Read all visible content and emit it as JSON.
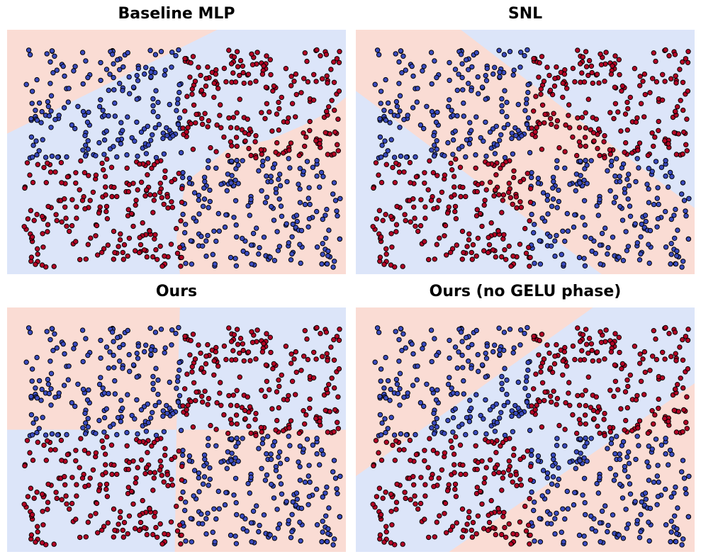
{
  "colors": {
    "region_red": "#fadcd4",
    "region_blue": "#dce5f9",
    "point_red": "#b40426",
    "point_blue": "#3b4cc0",
    "point_edge": "#000000"
  },
  "chart_data": [
    {
      "type": "scatter",
      "title": "Baseline MLP",
      "xlabel": "",
      "ylabel": "",
      "xlim": [
        -1,
        1
      ],
      "ylim": [
        -1,
        1
      ],
      "axes_visible": false,
      "classes": [
        "red",
        "blue"
      ],
      "points_per_class_approx": 400,
      "seed": 11,
      "true_boundary": "xor",
      "decision_regions": [
        {
          "class": "red",
          "polygon": [
            [
              -1,
              0.15
            ],
            [
              -1,
              1
            ],
            [
              0.24,
              1
            ]
          ]
        },
        {
          "class": "red",
          "polygon": [
            [
              0.02,
              -1
            ],
            [
              1,
              -1
            ],
            [
              1,
              0.45
            ],
            [
              0.9,
              0.33
            ],
            [
              0.75,
              0.22
            ],
            [
              0.55,
              0.1
            ],
            [
              0.3,
              0.02
            ],
            [
              0.05,
              -0.25
            ],
            [
              0.0,
              -0.7
            ]
          ]
        }
      ]
    },
    {
      "type": "scatter",
      "title": "SNL",
      "xlabel": "",
      "ylabel": "",
      "xlim": [
        -1,
        1
      ],
      "ylim": [
        -1,
        1
      ],
      "axes_visible": false,
      "classes": [
        "red",
        "blue"
      ],
      "points_per_class_approx": 400,
      "seed": 11,
      "true_boundary": "xor",
      "decision_regions": [
        {
          "class": "red",
          "polygon": [
            [
              -1,
              0.5
            ],
            [
              -1,
              1
            ],
            [
              -0.38,
              1
            ],
            [
              1,
              -0.46
            ],
            [
              1,
              -1
            ],
            [
              0.45,
              -1
            ]
          ]
        }
      ]
    },
    {
      "type": "scatter",
      "title": "Ours",
      "xlabel": "",
      "ylabel": "",
      "xlim": [
        -1,
        1
      ],
      "ylim": [
        -1,
        1
      ],
      "axes_visible": false,
      "classes": [
        "red",
        "blue"
      ],
      "points_per_class_approx": 400,
      "seed": 11,
      "true_boundary": "xor",
      "decision_regions": [
        {
          "class": "red",
          "polygon": [
            [
              -1,
              0.0
            ],
            [
              -1,
              1
            ],
            [
              0.02,
              1
            ],
            [
              0.0,
              0.0
            ]
          ]
        },
        {
          "class": "red",
          "polygon": [
            [
              0.0,
              0.0
            ],
            [
              1,
              0.0
            ],
            [
              1,
              -1
            ],
            [
              -0.01,
              -1
            ]
          ]
        }
      ]
    },
    {
      "type": "scatter",
      "title": "Ours (no GELU phase)",
      "xlabel": "",
      "ylabel": "",
      "xlim": [
        -1,
        1
      ],
      "ylim": [
        -1,
        1
      ],
      "axes_visible": false,
      "classes": [
        "red",
        "blue"
      ],
      "points_per_class_approx": 400,
      "seed": 11,
      "true_boundary": "xor",
      "decision_regions": [
        {
          "class": "red",
          "polygon": [
            [
              -1,
              -0.38
            ],
            [
              -1,
              1
            ],
            [
              0.4,
              1
            ]
          ]
        },
        {
          "class": "red",
          "polygon": [
            [
              -0.45,
              -1
            ],
            [
              1,
              -1
            ],
            [
              1,
              0.38
            ]
          ]
        }
      ]
    }
  ]
}
